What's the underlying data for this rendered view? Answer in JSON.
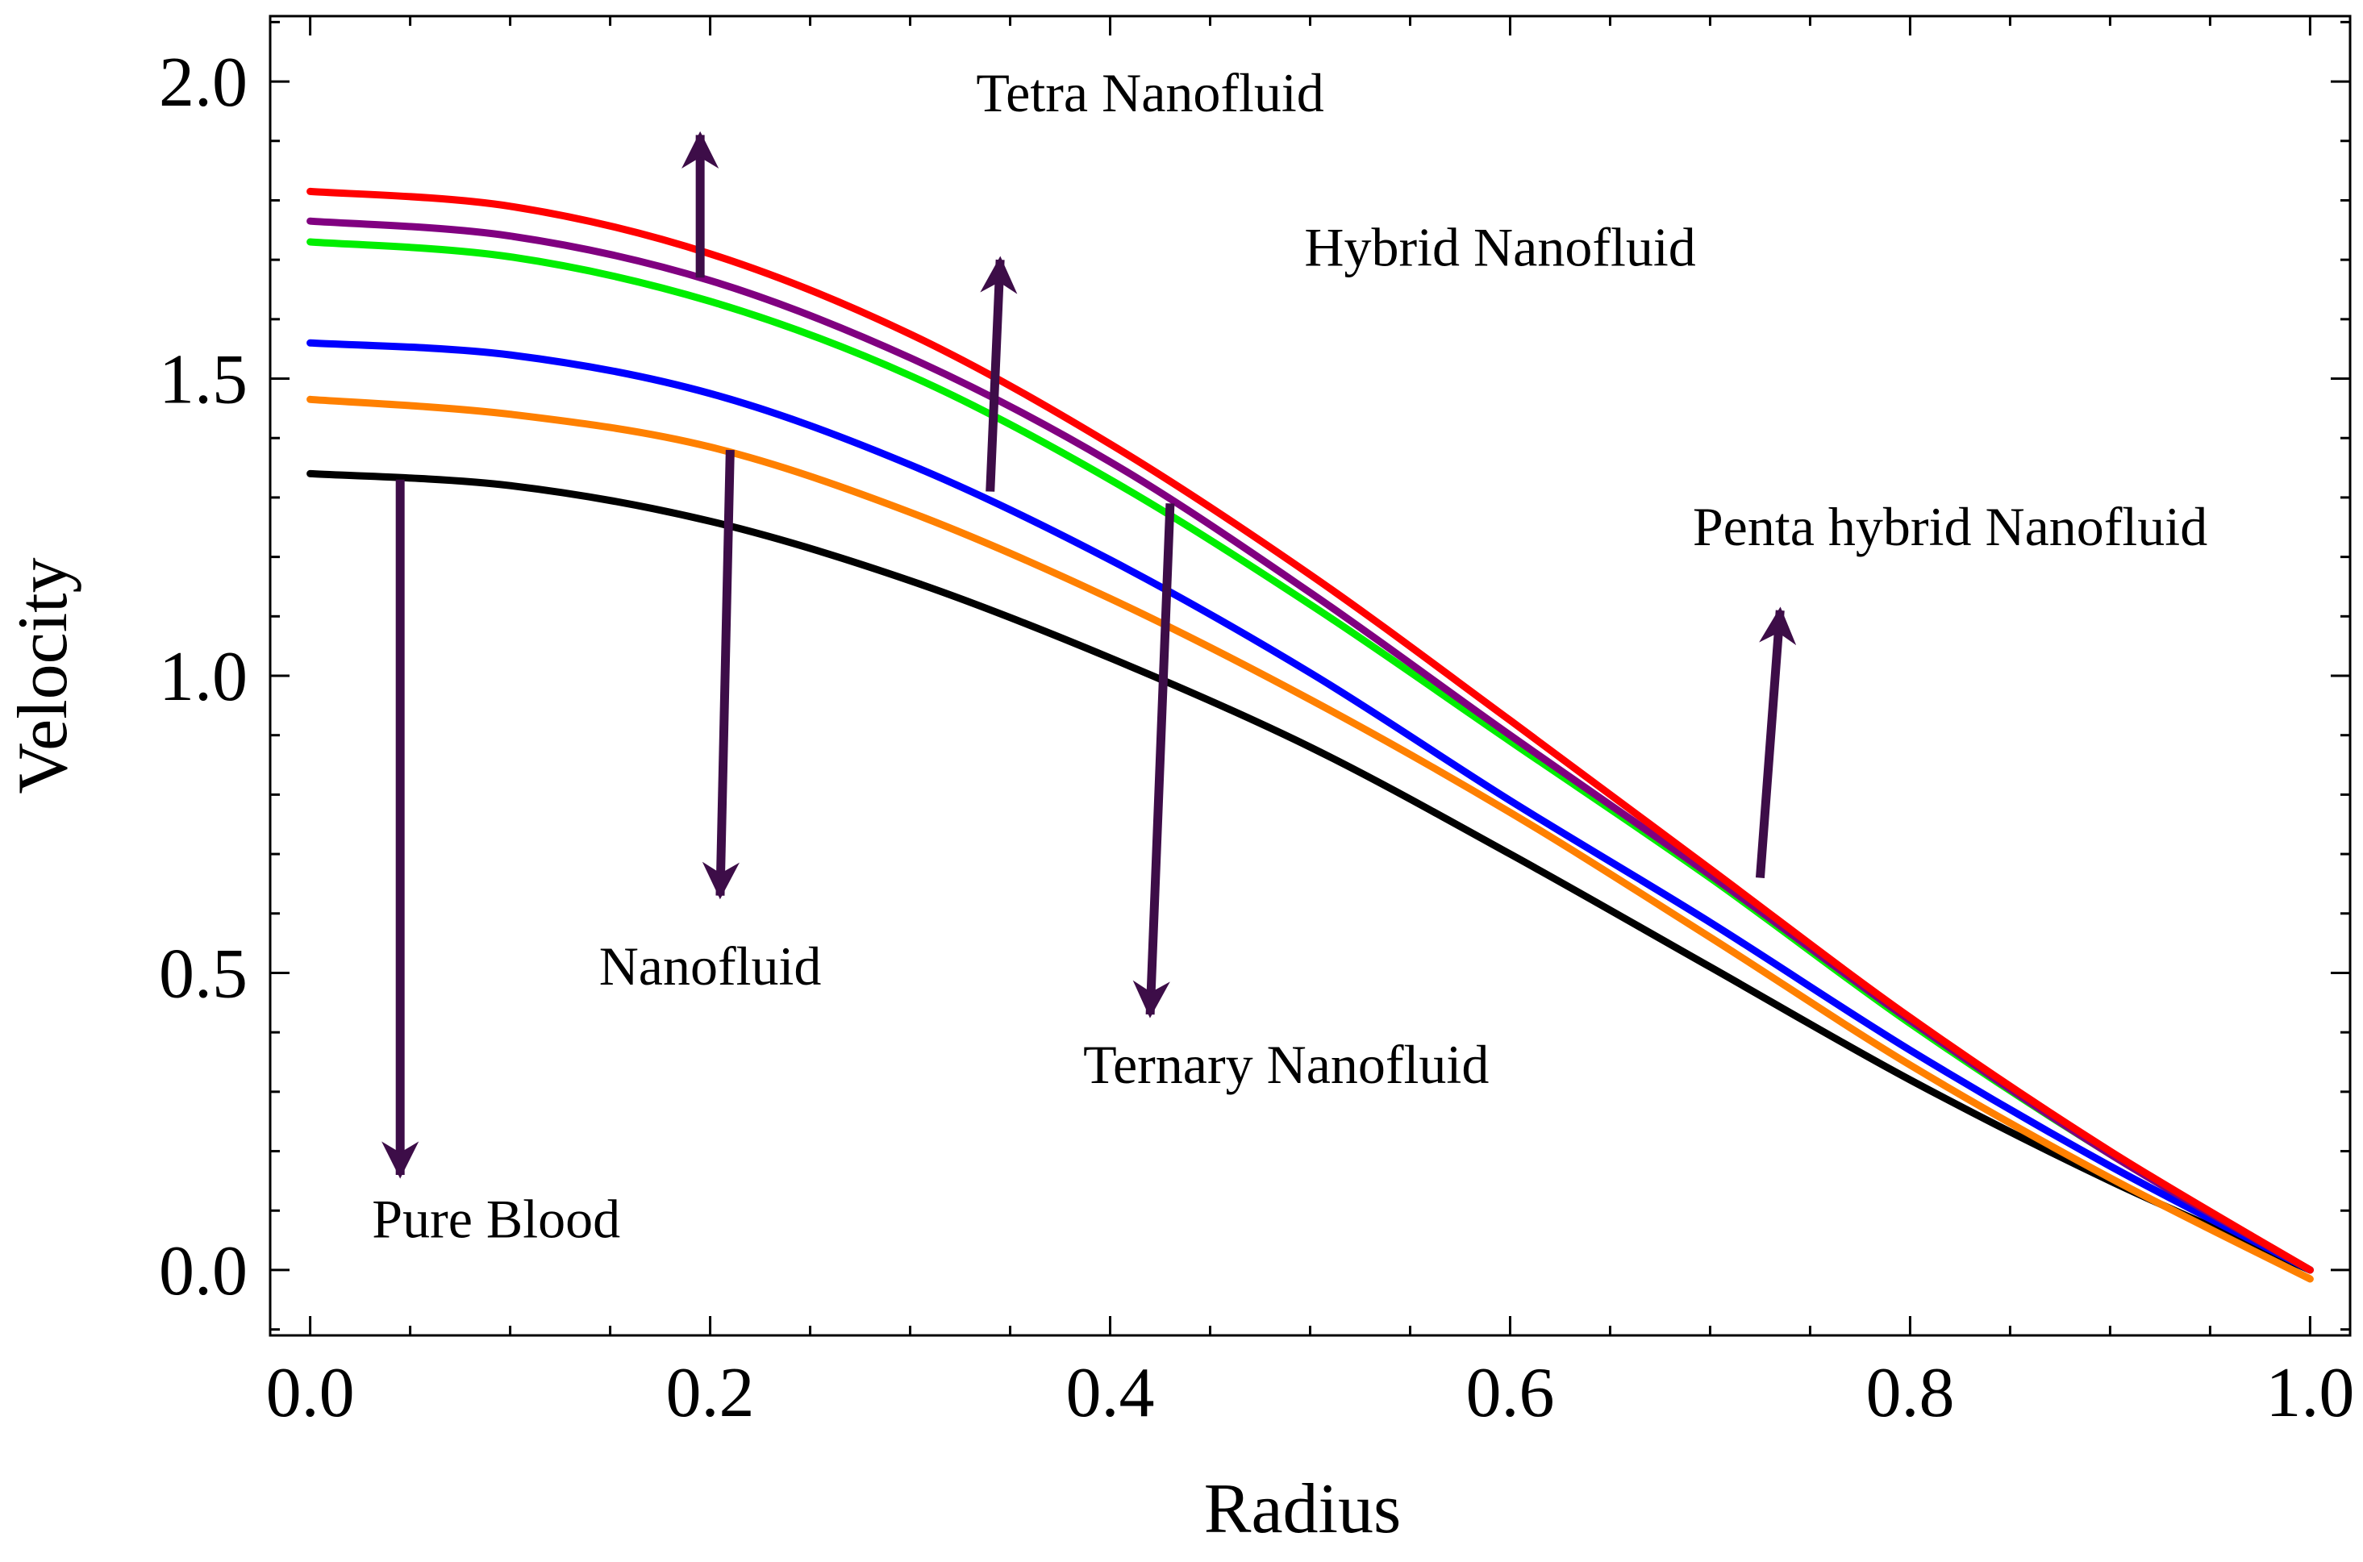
{
  "chart_data": {
    "type": "line",
    "title": "",
    "xlabel": "Radius",
    "ylabel": "Velocity",
    "xlim": [
      -0.02,
      1.02
    ],
    "ylim": [
      -0.11,
      2.11
    ],
    "xticks": [
      0.0,
      0.2,
      0.4,
      0.6,
      0.8,
      1.0
    ],
    "xtick_labels": [
      "0.0",
      "0.2",
      "0.4",
      "0.6",
      "0.8",
      "1.0"
    ],
    "yticks": [
      0.0,
      0.5,
      1.0,
      1.5,
      2.0
    ],
    "ytick_labels": [
      "0.0",
      "0.5",
      "1.0",
      "1.5",
      "2.0"
    ],
    "grid": false,
    "x": [
      0.0,
      0.1,
      0.2,
      0.3,
      0.4,
      0.5,
      0.6,
      0.7,
      0.8,
      0.9,
      1.0
    ],
    "series": [
      {
        "name": "Pure Blood",
        "color": "#000000",
        "values": [
          1.34,
          1.32,
          1.26,
          1.16,
          1.03,
          0.88,
          0.7,
          0.51,
          0.32,
          0.15,
          0.0
        ]
      },
      {
        "name": "Nanofluid",
        "color": "#ff8000",
        "values": [
          1.465,
          1.44,
          1.385,
          1.275,
          1.13,
          0.96,
          0.77,
          0.56,
          0.345,
          0.155,
          -0.015
        ]
      },
      {
        "name": "Ternary Nanofluid",
        "color": "#0000ff",
        "values": [
          1.56,
          1.54,
          1.475,
          1.355,
          1.195,
          1.005,
          0.79,
          0.585,
          0.37,
          0.175,
          0.0
        ]
      },
      {
        "name": "Hybrid Nanofluid",
        "color": "#00ee00",
        "values": [
          1.73,
          1.705,
          1.63,
          1.505,
          1.33,
          1.12,
          0.89,
          0.66,
          0.415,
          0.195,
          0.0
        ]
      },
      {
        "name": "Penta hybrid Nanofluid",
        "color": "#800080",
        "values": [
          1.765,
          1.74,
          1.665,
          1.535,
          1.36,
          1.14,
          0.9,
          0.665,
          0.42,
          0.195,
          0.0
        ]
      },
      {
        "name": "Tetra Nanofluid",
        "color": "#ff0000",
        "values": [
          1.815,
          1.79,
          1.71,
          1.575,
          1.39,
          1.17,
          0.925,
          0.675,
          0.425,
          0.2,
          0.0
        ]
      }
    ],
    "annotations": [
      {
        "text": "Tetra Nanofluid",
        "direction": "up",
        "arrow_from": [
          0.195,
          1.67
        ],
        "arrow_to": [
          0.195,
          1.91
        ],
        "text_at": [
          0.42,
          1.95
        ]
      },
      {
        "text": "Hybrid Nanofluid",
        "direction": "up",
        "arrow_from": [
          0.34,
          1.31
        ],
        "arrow_to": [
          0.345,
          1.7
        ],
        "text_at": [
          0.595,
          1.69
        ]
      },
      {
        "text": "Penta hybrid Nanofluid",
        "direction": "up",
        "arrow_from": [
          0.725,
          0.66
        ],
        "arrow_to": [
          0.735,
          1.11
        ],
        "text_at": [
          0.82,
          1.22
        ]
      },
      {
        "text": "Nanofluid",
        "direction": "down",
        "arrow_from": [
          0.21,
          1.38
        ],
        "arrow_to": [
          0.205,
          0.63
        ],
        "text_at": [
          0.2,
          0.48
        ]
      },
      {
        "text": "Ternary Nanofluid",
        "direction": "down",
        "arrow_from": [
          0.43,
          1.29
        ],
        "arrow_to": [
          0.42,
          0.43
        ],
        "text_at": [
          0.488,
          0.315
        ]
      },
      {
        "text": "Pure Blood",
        "direction": "down",
        "arrow_from": [
          0.045,
          1.33
        ],
        "arrow_to": [
          0.045,
          0.16
        ],
        "text_at": [
          0.093,
          0.055
        ]
      }
    ],
    "annotation_color": "#3d0d48"
  }
}
